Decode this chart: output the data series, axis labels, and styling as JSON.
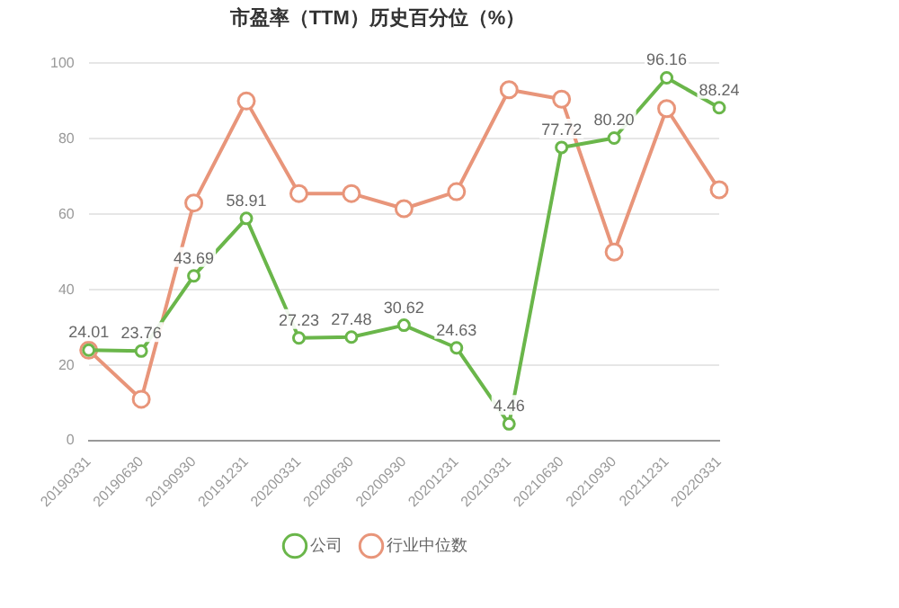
{
  "chart_data": {
    "type": "line",
    "title": "市盈率（TTM）历史百分位（%）",
    "categories": [
      "20190331",
      "20190630",
      "20190930",
      "20191231",
      "20200331",
      "20200630",
      "20200930",
      "20201231",
      "20210331",
      "20210630",
      "20210930",
      "20211231",
      "20220331"
    ],
    "series": [
      {
        "name": "公司",
        "color": "#6ab64a",
        "values": [
          24.01,
          23.76,
          43.69,
          58.91,
          27.23,
          27.48,
          30.62,
          24.63,
          4.46,
          77.72,
          80.2,
          96.16,
          88.24
        ],
        "value_labels": [
          "24.01",
          "23.76",
          "43.69",
          "58.91",
          "27.23",
          "27.48",
          "30.62",
          "24.63",
          "4.46",
          "77.72",
          "80.20",
          "96.16",
          "88.24"
        ]
      },
      {
        "name": "行业中位数",
        "color": "#e8957a",
        "values": [
          24,
          11,
          63,
          90,
          65.5,
          65.5,
          61.5,
          66,
          93,
          90.5,
          50,
          88,
          66.5
        ]
      }
    ],
    "ylim": [
      0,
      100
    ],
    "yticks": [
      0,
      20,
      40,
      60,
      80,
      100
    ],
    "grid": "y",
    "legend": "bottom",
    "marker": "circle",
    "line_style": "solid"
  }
}
